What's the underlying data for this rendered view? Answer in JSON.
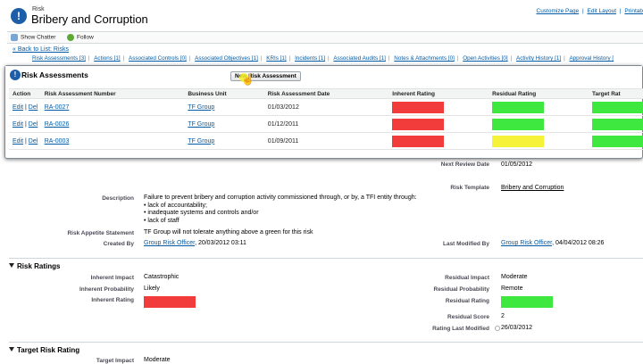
{
  "header": {
    "object_type": "Risk",
    "title": "Bribery and Corruption",
    "top_links": [
      "Customize Page",
      "|",
      "Edit Layout",
      "|",
      "Printab"
    ]
  },
  "chatter": {
    "show_chatter": "Show Chatter",
    "follow": "Follow"
  },
  "back_link": "« Back to List: Risks",
  "related_lists": [
    "Risk Assessments [3]",
    "Actions [1]",
    "Associated Controls [0]",
    "Associated Objectives [1]",
    "KRIs [1]",
    "Incidents [1]",
    "Associated Audits [1]",
    "Notes & Attachments [0]",
    "Open Activities [0]",
    "Activity History [1]",
    "Approval History ["
  ],
  "risk_assessments": {
    "title": "Risk Assessments",
    "new_button": "New Risk Assessment",
    "columns": [
      "Action",
      "Risk Assessment Number",
      "Business Unit",
      "Risk Assessment Date",
      "Inherent Rating",
      "Residual Rating",
      "Target Rat"
    ],
    "rows": [
      {
        "action_edit": "Edit",
        "action_sep": "|",
        "action_del": "Del",
        "number": "RA-0027",
        "unit": "TF Group",
        "date": "01/03/2012",
        "inherent": "#f23b3b",
        "residual": "#3fe83f",
        "target": "#3fe83f"
      },
      {
        "action_edit": "Edit",
        "action_sep": "|",
        "action_del": "Del",
        "number": "RA-0026",
        "unit": "TF Group",
        "date": "01/12/2011",
        "inherent": "#f23b3b",
        "residual": "#3fe83f",
        "target": "#3fe83f"
      },
      {
        "action_edit": "Edit",
        "action_sep": "|",
        "action_del": "Del",
        "number": "RA-0003",
        "unit": "TF Group",
        "date": "01/09/2011",
        "inherent": "#f23b3b",
        "residual": "#f6f23a",
        "target": "#3fe83f"
      }
    ]
  },
  "details": {
    "next_review_label": "Next Review Date",
    "next_review_value": "01/05/2012",
    "risk_template_label": "Risk Template",
    "risk_template_value": "Bribery and Corruption",
    "description_label": "Description",
    "description_lines": [
      "Failure to prevent bribery and corruption activity commissioned through, or by, a TFI entity through:",
      "• lack of accountability;",
      "• inadequate systems and controls and/or",
      "• lack of staff"
    ],
    "appetite_label": "Risk Appetite Statement",
    "appetite_value": "TF Group will not tolerate anything above a green for this risk",
    "created_label": "Created By",
    "created_user": "Group Risk Officer",
    "created_date": ", 20/03/2012 03:11",
    "modified_label": "Last Modified By",
    "modified_user": "Group Risk Officer",
    "modified_date": ", 04/04/2012 08:26"
  },
  "risk_ratings": {
    "section_title": "Risk Ratings",
    "inherent_impact_label": "Inherent Impact",
    "inherent_impact_value": "Catastrophic",
    "inherent_prob_label": "Inherent Probability",
    "inherent_prob_value": "Likely",
    "inherent_rating_label": "Inherent Rating",
    "inherent_rating_color": "#f23b3b",
    "residual_impact_label": "Residual Impact",
    "residual_impact_value": "Moderate",
    "residual_prob_label": "Residual Probability",
    "residual_prob_value": "Remote",
    "residual_rating_label": "Residual Rating",
    "residual_rating_color": "#3fe83f",
    "residual_score_label": "Residual Score",
    "residual_score_value": "2",
    "rating_modified_label": "Rating Last Modified",
    "rating_modified_value": "26/03/2012"
  },
  "target_rating": {
    "section_title": "Target Risk Rating",
    "target_impact_label": "Target Impact",
    "target_impact_value": "Moderate"
  }
}
